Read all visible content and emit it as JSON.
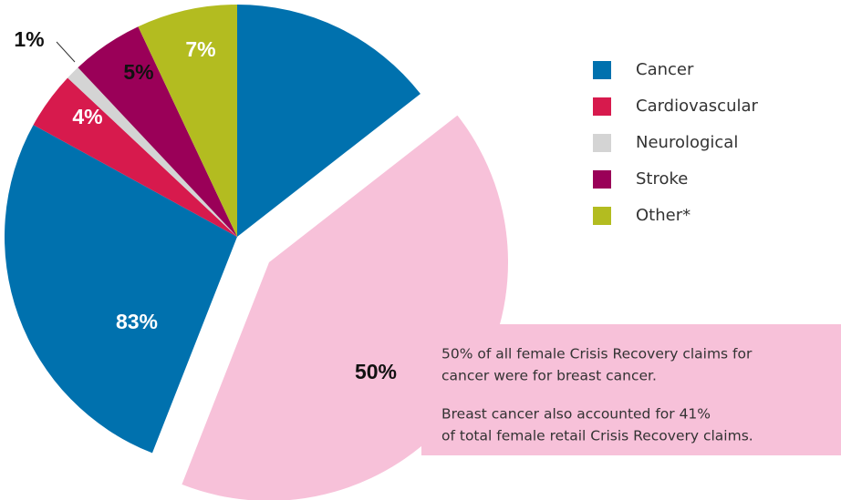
{
  "chart_data": {
    "type": "pie",
    "categories": [
      "Cancer",
      "Cardiovascular",
      "Neurological",
      "Stroke",
      "Other*"
    ],
    "values": [
      83,
      4,
      1,
      5,
      7
    ],
    "value_labels": [
      "83%",
      "4%",
      "1%",
      "5%",
      "7%"
    ],
    "colors": [
      "#0071ae",
      "#d71a4d",
      "#d4d4d4",
      "#9a0058",
      "#b3bc20"
    ],
    "sub_slice": {
      "value": 50,
      "value_label": "50%",
      "color": "#f7c1d9"
    },
    "annotation": [
      [
        "50% of all female Crisis Recovery claims for",
        "cancer were for breast cancer."
      ],
      [
        "Breast cancer also accounted for 41%",
        "of total female retail Crisis Recovery claims."
      ]
    ]
  }
}
